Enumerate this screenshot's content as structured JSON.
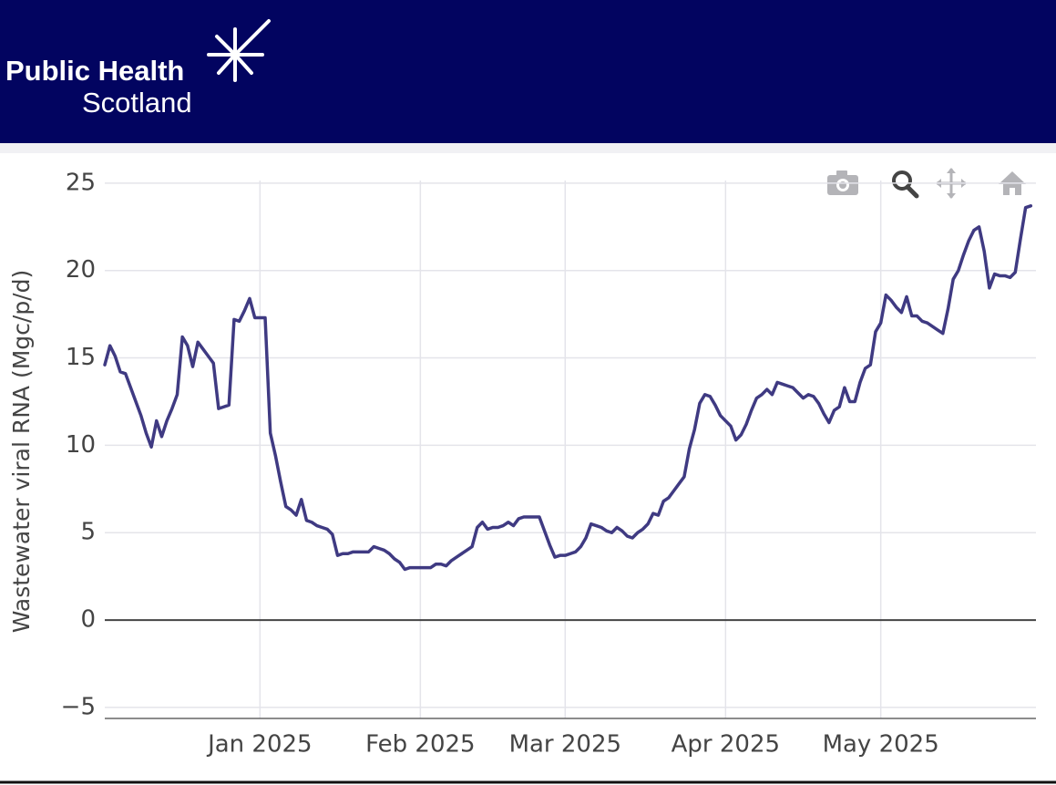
{
  "header": {
    "logo_line1": "Public Health",
    "logo_line2": "Scotland"
  },
  "chart_data": {
    "type": "line",
    "y_label": "Wastewater viral RNA (Mgc/p/d)",
    "color": "#3f3a82",
    "x": [
      "2024-12-02",
      "2024-12-03",
      "2024-12-04",
      "2024-12-05",
      "2024-12-06",
      "2024-12-07",
      "2024-12-08",
      "2024-12-09",
      "2024-12-10",
      "2024-12-11",
      "2024-12-12",
      "2024-12-13",
      "2024-12-14",
      "2024-12-15",
      "2024-12-16",
      "2024-12-17",
      "2024-12-18",
      "2024-12-19",
      "2024-12-20",
      "2024-12-21",
      "2024-12-22",
      "2024-12-23",
      "2024-12-24",
      "2024-12-25",
      "2024-12-26",
      "2024-12-27",
      "2024-12-28",
      "2024-12-29",
      "2024-12-30",
      "2024-12-31",
      "2025-01-01",
      "2025-01-02",
      "2025-01-03",
      "2025-01-04",
      "2025-01-05",
      "2025-01-06",
      "2025-01-07",
      "2025-01-08",
      "2025-01-09",
      "2025-01-10",
      "2025-01-11",
      "2025-01-12",
      "2025-01-13",
      "2025-01-14",
      "2025-01-15",
      "2025-01-16",
      "2025-01-17",
      "2025-01-18",
      "2025-01-19",
      "2025-01-20",
      "2025-01-21",
      "2025-01-22",
      "2025-01-23",
      "2025-01-24",
      "2025-01-25",
      "2025-01-26",
      "2025-01-27",
      "2025-01-28",
      "2025-01-29",
      "2025-01-30",
      "2025-01-31",
      "2025-02-01",
      "2025-02-02",
      "2025-02-03",
      "2025-02-04",
      "2025-02-05",
      "2025-02-06",
      "2025-02-07",
      "2025-02-08",
      "2025-02-09",
      "2025-02-10",
      "2025-02-11",
      "2025-02-12",
      "2025-02-13",
      "2025-02-14",
      "2025-02-15",
      "2025-02-16",
      "2025-02-17",
      "2025-02-18",
      "2025-02-19",
      "2025-02-20",
      "2025-02-21",
      "2025-02-22",
      "2025-02-23",
      "2025-02-24",
      "2025-02-25",
      "2025-02-26",
      "2025-02-27",
      "2025-02-28",
      "2025-03-01",
      "2025-03-02",
      "2025-03-03",
      "2025-03-04",
      "2025-03-05",
      "2025-03-06",
      "2025-03-07",
      "2025-03-08",
      "2025-03-09",
      "2025-03-10",
      "2025-03-11",
      "2025-03-12",
      "2025-03-13",
      "2025-03-14",
      "2025-03-15",
      "2025-03-16",
      "2025-03-17",
      "2025-03-18",
      "2025-03-19",
      "2025-03-20",
      "2025-03-21",
      "2025-03-22",
      "2025-03-23",
      "2025-03-24",
      "2025-03-25",
      "2025-03-26",
      "2025-03-27",
      "2025-03-28",
      "2025-03-29",
      "2025-03-30",
      "2025-03-31",
      "2025-04-01",
      "2025-04-02",
      "2025-04-03",
      "2025-04-04",
      "2025-04-05",
      "2025-04-06",
      "2025-04-07",
      "2025-04-08",
      "2025-04-09",
      "2025-04-10",
      "2025-04-11",
      "2025-04-12",
      "2025-04-13",
      "2025-04-14",
      "2025-04-15",
      "2025-04-16",
      "2025-04-17",
      "2025-04-18",
      "2025-04-19",
      "2025-04-20",
      "2025-04-21",
      "2025-04-22",
      "2025-04-23",
      "2025-04-24",
      "2025-04-25",
      "2025-04-26",
      "2025-04-27",
      "2025-04-28",
      "2025-04-29",
      "2025-04-30",
      "2025-05-01",
      "2025-05-02",
      "2025-05-03",
      "2025-05-04",
      "2025-05-05",
      "2025-05-06",
      "2025-05-07",
      "2025-05-08",
      "2025-05-09",
      "2025-05-10",
      "2025-05-11",
      "2025-05-12",
      "2025-05-13",
      "2025-05-14",
      "2025-05-15",
      "2025-05-16",
      "2025-05-17",
      "2025-05-18",
      "2025-05-19",
      "2025-05-20",
      "2025-05-21",
      "2025-05-22",
      "2025-05-23",
      "2025-05-24",
      "2025-05-25",
      "2025-05-26",
      "2025-05-27",
      "2025-05-28",
      "2025-05-29",
      "2025-05-30"
    ],
    "values": [
      14.6,
      15.7,
      15.1,
      14.2,
      14.1,
      13.3,
      12.5,
      11.7,
      10.7,
      9.9,
      11.4,
      10.5,
      11.4,
      12.1,
      12.9,
      16.2,
      15.7,
      14.5,
      15.9,
      15.5,
      15.1,
      14.7,
      12.1,
      12.2,
      12.3,
      17.2,
      17.1,
      17.7,
      18.4,
      17.3,
      17.3,
      17.3,
      10.7,
      9.4,
      7.9,
      6.5,
      6.3,
      6.0,
      6.9,
      5.7,
      5.6,
      5.4,
      5.3,
      5.2,
      4.9,
      3.7,
      3.8,
      3.8,
      3.9,
      3.9,
      3.9,
      3.9,
      4.2,
      4.1,
      4.0,
      3.8,
      3.5,
      3.3,
      2.9,
      3.0,
      3.0,
      3.0,
      3.0,
      3.0,
      3.2,
      3.2,
      3.1,
      3.4,
      3.6,
      3.8,
      4.0,
      4.2,
      5.3,
      5.6,
      5.2,
      5.3,
      5.3,
      5.4,
      5.6,
      5.4,
      5.8,
      5.9,
      5.9,
      5.9,
      5.9,
      5.1,
      4.3,
      3.6,
      3.7,
      3.7,
      3.8,
      3.9,
      4.2,
      4.7,
      5.5,
      5.4,
      5.3,
      5.1,
      5.0,
      5.3,
      5.1,
      4.8,
      4.7,
      5.0,
      5.2,
      5.5,
      6.1,
      6.0,
      6.8,
      7.0,
      7.4,
      7.8,
      8.2,
      9.8,
      10.9,
      12.4,
      12.9,
      12.8,
      12.3,
      11.7,
      11.4,
      11.1,
      10.3,
      10.6,
      11.2,
      12.0,
      12.7,
      12.9,
      13.2,
      12.9,
      13.6,
      13.5,
      13.4,
      13.3,
      13.0,
      12.7,
      12.9,
      12.8,
      12.4,
      11.8,
      11.3,
      12.0,
      12.2,
      13.3,
      12.5,
      12.5,
      13.6,
      14.4,
      14.6,
      16.5,
      17.0,
      18.6,
      18.3,
      17.9,
      17.6,
      18.5,
      17.4,
      17.4,
      17.1,
      17.0,
      16.8,
      16.6,
      16.4,
      17.8,
      19.5,
      20.0,
      20.9,
      21.7,
      22.3,
      22.5,
      21.1,
      19.0,
      19.8,
      19.7,
      19.7,
      19.6,
      19.9,
      21.8,
      23.6,
      23.7
    ],
    "xlim": [
      "2024-12-02",
      "2025-05-31"
    ],
    "xticks": [
      {
        "value": "2025-01-01",
        "label": "Jan 2025"
      },
      {
        "value": "2025-02-01",
        "label": "Feb 2025"
      },
      {
        "value": "2025-03-01",
        "label": "Mar 2025"
      },
      {
        "value": "2025-04-01",
        "label": "Apr 2025"
      },
      {
        "value": "2025-05-01",
        "label": "May 2025"
      }
    ],
    "ylim": [
      -5.63,
      25.15
    ],
    "yticks": [
      {
        "value": -5,
        "label": "−5"
      },
      0,
      5,
      10,
      15,
      20,
      25
    ],
    "grid": true
  }
}
